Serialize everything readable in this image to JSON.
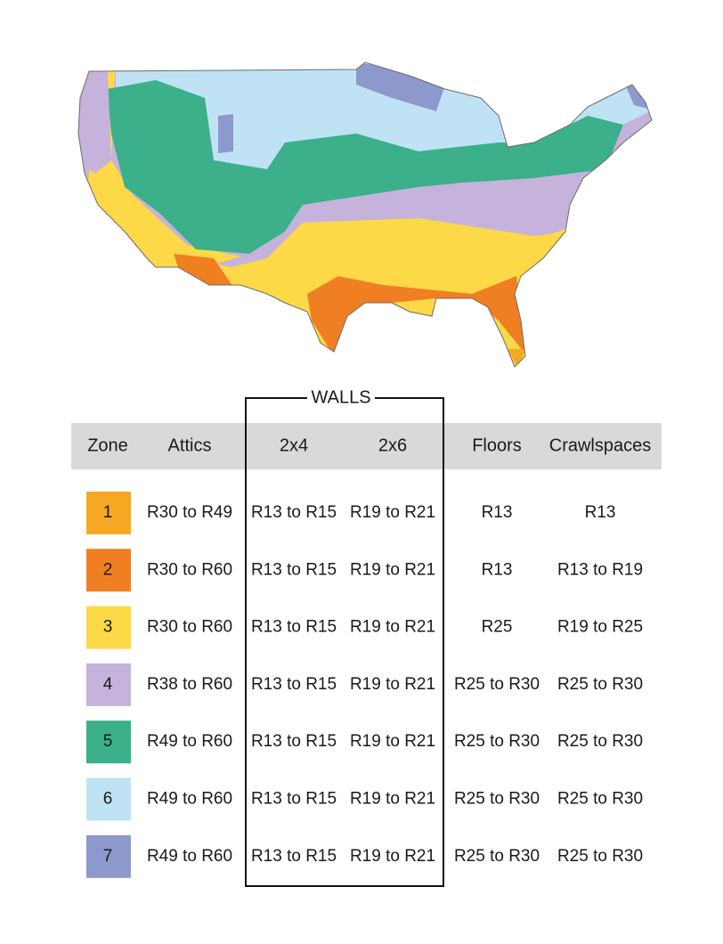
{
  "table": {
    "group_label": "WALLS",
    "columns": [
      "Zone",
      "Attics",
      "2x4",
      "2x6",
      "Floors",
      "Crawlspaces"
    ],
    "rows": [
      {
        "zone": "1",
        "color": "#f7a823",
        "cells": [
          "R30 to R49",
          "R13 to R15",
          "R19 to R21",
          "R13",
          "R13"
        ]
      },
      {
        "zone": "2",
        "color": "#f07f22",
        "cells": [
          "R30 to R60",
          "R13 to R15",
          "R19 to R21",
          "R13",
          "R13 to R19"
        ]
      },
      {
        "zone": "3",
        "color": "#fdd948",
        "cells": [
          "R30 to R60",
          "R13 to R15",
          "R19 to R21",
          "R25",
          "R19 to R25"
        ]
      },
      {
        "zone": "4",
        "color": "#c5b3db",
        "cells": [
          "R38 to R60",
          "R13 to R15",
          "R19 to R21",
          "R25 to R30",
          "R25 to R30"
        ]
      },
      {
        "zone": "5",
        "color": "#3bb08a",
        "cells": [
          "R49 to R60",
          "R13 to R15",
          "R19 to R21",
          "R25 to R30",
          "R25 to R30"
        ]
      },
      {
        "zone": "6",
        "color": "#bfe3f5",
        "cells": [
          "R49 to R60",
          "R13 to R15",
          "R19 to R21",
          "R25 to R30",
          "R25 to R30"
        ]
      },
      {
        "zone": "7",
        "color": "#8d98cd",
        "cells": [
          "R49 to R60",
          "R13 to R15",
          "R19 to R21",
          "R25 to R30",
          "R25 to R30"
        ]
      }
    ]
  }
}
